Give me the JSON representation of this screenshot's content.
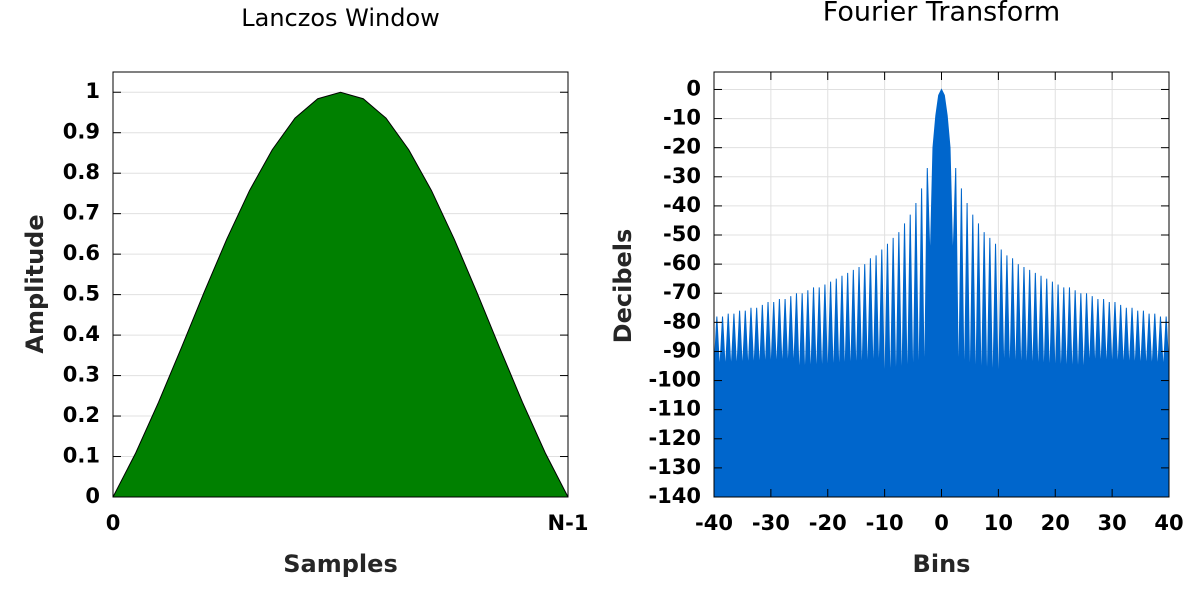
{
  "chart_data": [
    {
      "type": "area",
      "title": "Lanczos Window",
      "xlabel": "Samples",
      "ylabel": "Amplitude",
      "x": [
        0,
        0.05,
        0.1,
        0.15,
        0.2,
        0.25,
        0.3,
        0.35,
        0.4,
        0.45,
        0.5,
        0.55,
        0.6,
        0.65,
        0.7,
        0.75,
        0.8,
        0.85,
        0.9,
        0.95,
        1
      ],
      "series": [
        {
          "color": "#008000",
          "edgecolor": "#000000",
          "values": [
            0,
            0.109,
            0.234,
            0.368,
            0.505,
            0.637,
            0.757,
            0.858,
            0.936,
            0.984,
            1,
            0.984,
            0.936,
            0.858,
            0.757,
            0.637,
            0.505,
            0.368,
            0.234,
            0.109,
            0
          ]
        }
      ],
      "xlim": [
        0,
        1
      ],
      "xticks": [
        0,
        {
          "value": 1,
          "label": "N-1"
        }
      ],
      "ylim": [
        0,
        1.05
      ],
      "yticks": [
        0,
        0.1,
        0.2,
        0.3,
        0.4,
        0.5,
        0.6,
        0.7,
        0.8,
        0.9,
        1
      ],
      "grid": true
    },
    {
      "type": "area",
      "title": "Fourier Transform",
      "xlabel": "Bins",
      "ylabel": "Decibels",
      "x": [
        -40,
        -39.5,
        -39,
        -38.5,
        -38,
        -37.5,
        -37,
        -36.5,
        -36,
        -35.5,
        -35,
        -34.5,
        -34,
        -33.5,
        -33,
        -32.5,
        -32,
        -31.5,
        -31,
        -30.5,
        -30,
        -29.5,
        -29,
        -28.5,
        -28,
        -27.5,
        -27,
        -26.5,
        -26,
        -25.5,
        -25,
        -24.5,
        -24,
        -23.5,
        -23,
        -22.5,
        -22,
        -21.5,
        -21,
        -20.5,
        -20,
        -19.5,
        -19,
        -18.5,
        -18,
        -17.5,
        -17,
        -16.5,
        -16,
        -15.5,
        -15,
        -14.5,
        -14,
        -13.5,
        -13,
        -12.5,
        -12,
        -11.5,
        -11,
        -10.5,
        -10,
        -9.5,
        -9,
        -8.5,
        -8,
        -7.5,
        -7,
        -6.5,
        -6,
        -5.5,
        -5,
        -4.5,
        -4,
        -3.5,
        -3,
        -2.5,
        -2,
        -1.5,
        -1,
        -0.5,
        0,
        0.5,
        1,
        1.5,
        2,
        2.5,
        3,
        3.5,
        4,
        4.5,
        5,
        5.5,
        6,
        6.5,
        7,
        7.5,
        8,
        8.5,
        9,
        9.5,
        10,
        10.5,
        11,
        11.5,
        12,
        12.5,
        13,
        13.5,
        14,
        14.5,
        15,
        15.5,
        16,
        16.5,
        17,
        17.5,
        18,
        18.5,
        19,
        19.5,
        20,
        20.5,
        21,
        21.5,
        22,
        22.5,
        23,
        23.5,
        24,
        24.5,
        25,
        25.5,
        26,
        26.5,
        27,
        27.5,
        28,
        28.5,
        29,
        29.5,
        30,
        30.5,
        31,
        31.5,
        32,
        32.5,
        33,
        33.5,
        34,
        34.5,
        35,
        35.5,
        36,
        36.5,
        37,
        37.5,
        38,
        38.5,
        39,
        39.5,
        40
      ],
      "series": [
        {
          "color": "#0066cc",
          "edgecolor": "#0066cc",
          "values": [
            -97,
            -78,
            -97,
            -78,
            -97,
            -77,
            -97,
            -77,
            -97,
            -76,
            -97,
            -76,
            -97,
            -75,
            -97,
            -75,
            -97,
            -74,
            -97,
            -73,
            -97,
            -73,
            -97,
            -72,
            -97,
            -72,
            -97,
            -71,
            -97,
            -70,
            -100,
            -70,
            -100,
            -69,
            -100,
            -68,
            -100,
            -68,
            -100,
            -67,
            -100,
            -66,
            -100,
            -65,
            -100,
            -64,
            -100,
            -63,
            -100,
            -62,
            -100,
            -61,
            -100,
            -60,
            -100,
            -58,
            -100,
            -57,
            -100,
            -55,
            -105,
            -53,
            -105,
            -51,
            -105,
            -49,
            -105,
            -46,
            -105,
            -43,
            -105,
            -39,
            -105,
            -34,
            -105,
            -27,
            -60,
            -20,
            -9,
            -2,
            0,
            -2,
            -9,
            -20,
            -60,
            -27,
            -105,
            -34,
            -105,
            -39,
            -105,
            -43,
            -105,
            -46,
            -105,
            -49,
            -105,
            -51,
            -105,
            -53,
            -105,
            -55,
            -100,
            -57,
            -100,
            -58,
            -100,
            -60,
            -100,
            -61,
            -100,
            -62,
            -100,
            -63,
            -100,
            -64,
            -100,
            -65,
            -100,
            -66,
            -100,
            -67,
            -100,
            -68,
            -100,
            -68,
            -100,
            -69,
            -100,
            -70,
            -100,
            -70,
            -97,
            -71,
            -97,
            -72,
            -97,
            -72,
            -97,
            -73,
            -97,
            -73,
            -97,
            -74,
            -97,
            -75,
            -97,
            -75,
            -97,
            -76,
            -97,
            -76,
            -97,
            -77,
            -97,
            -77,
            -97,
            -78,
            -97,
            -78,
            -97
          ]
        }
      ],
      "xlim": [
        -40,
        40
      ],
      "xticks": [
        -40,
        -30,
        -20,
        -10,
        0,
        10,
        20,
        30,
        40
      ],
      "ylim": [
        -140,
        6
      ],
      "yticks": [
        0,
        -10,
        -20,
        -30,
        -40,
        -50,
        -60,
        -70,
        -80,
        -90,
        -100,
        -110,
        -120,
        -130,
        -140
      ],
      "grid": true
    }
  ]
}
